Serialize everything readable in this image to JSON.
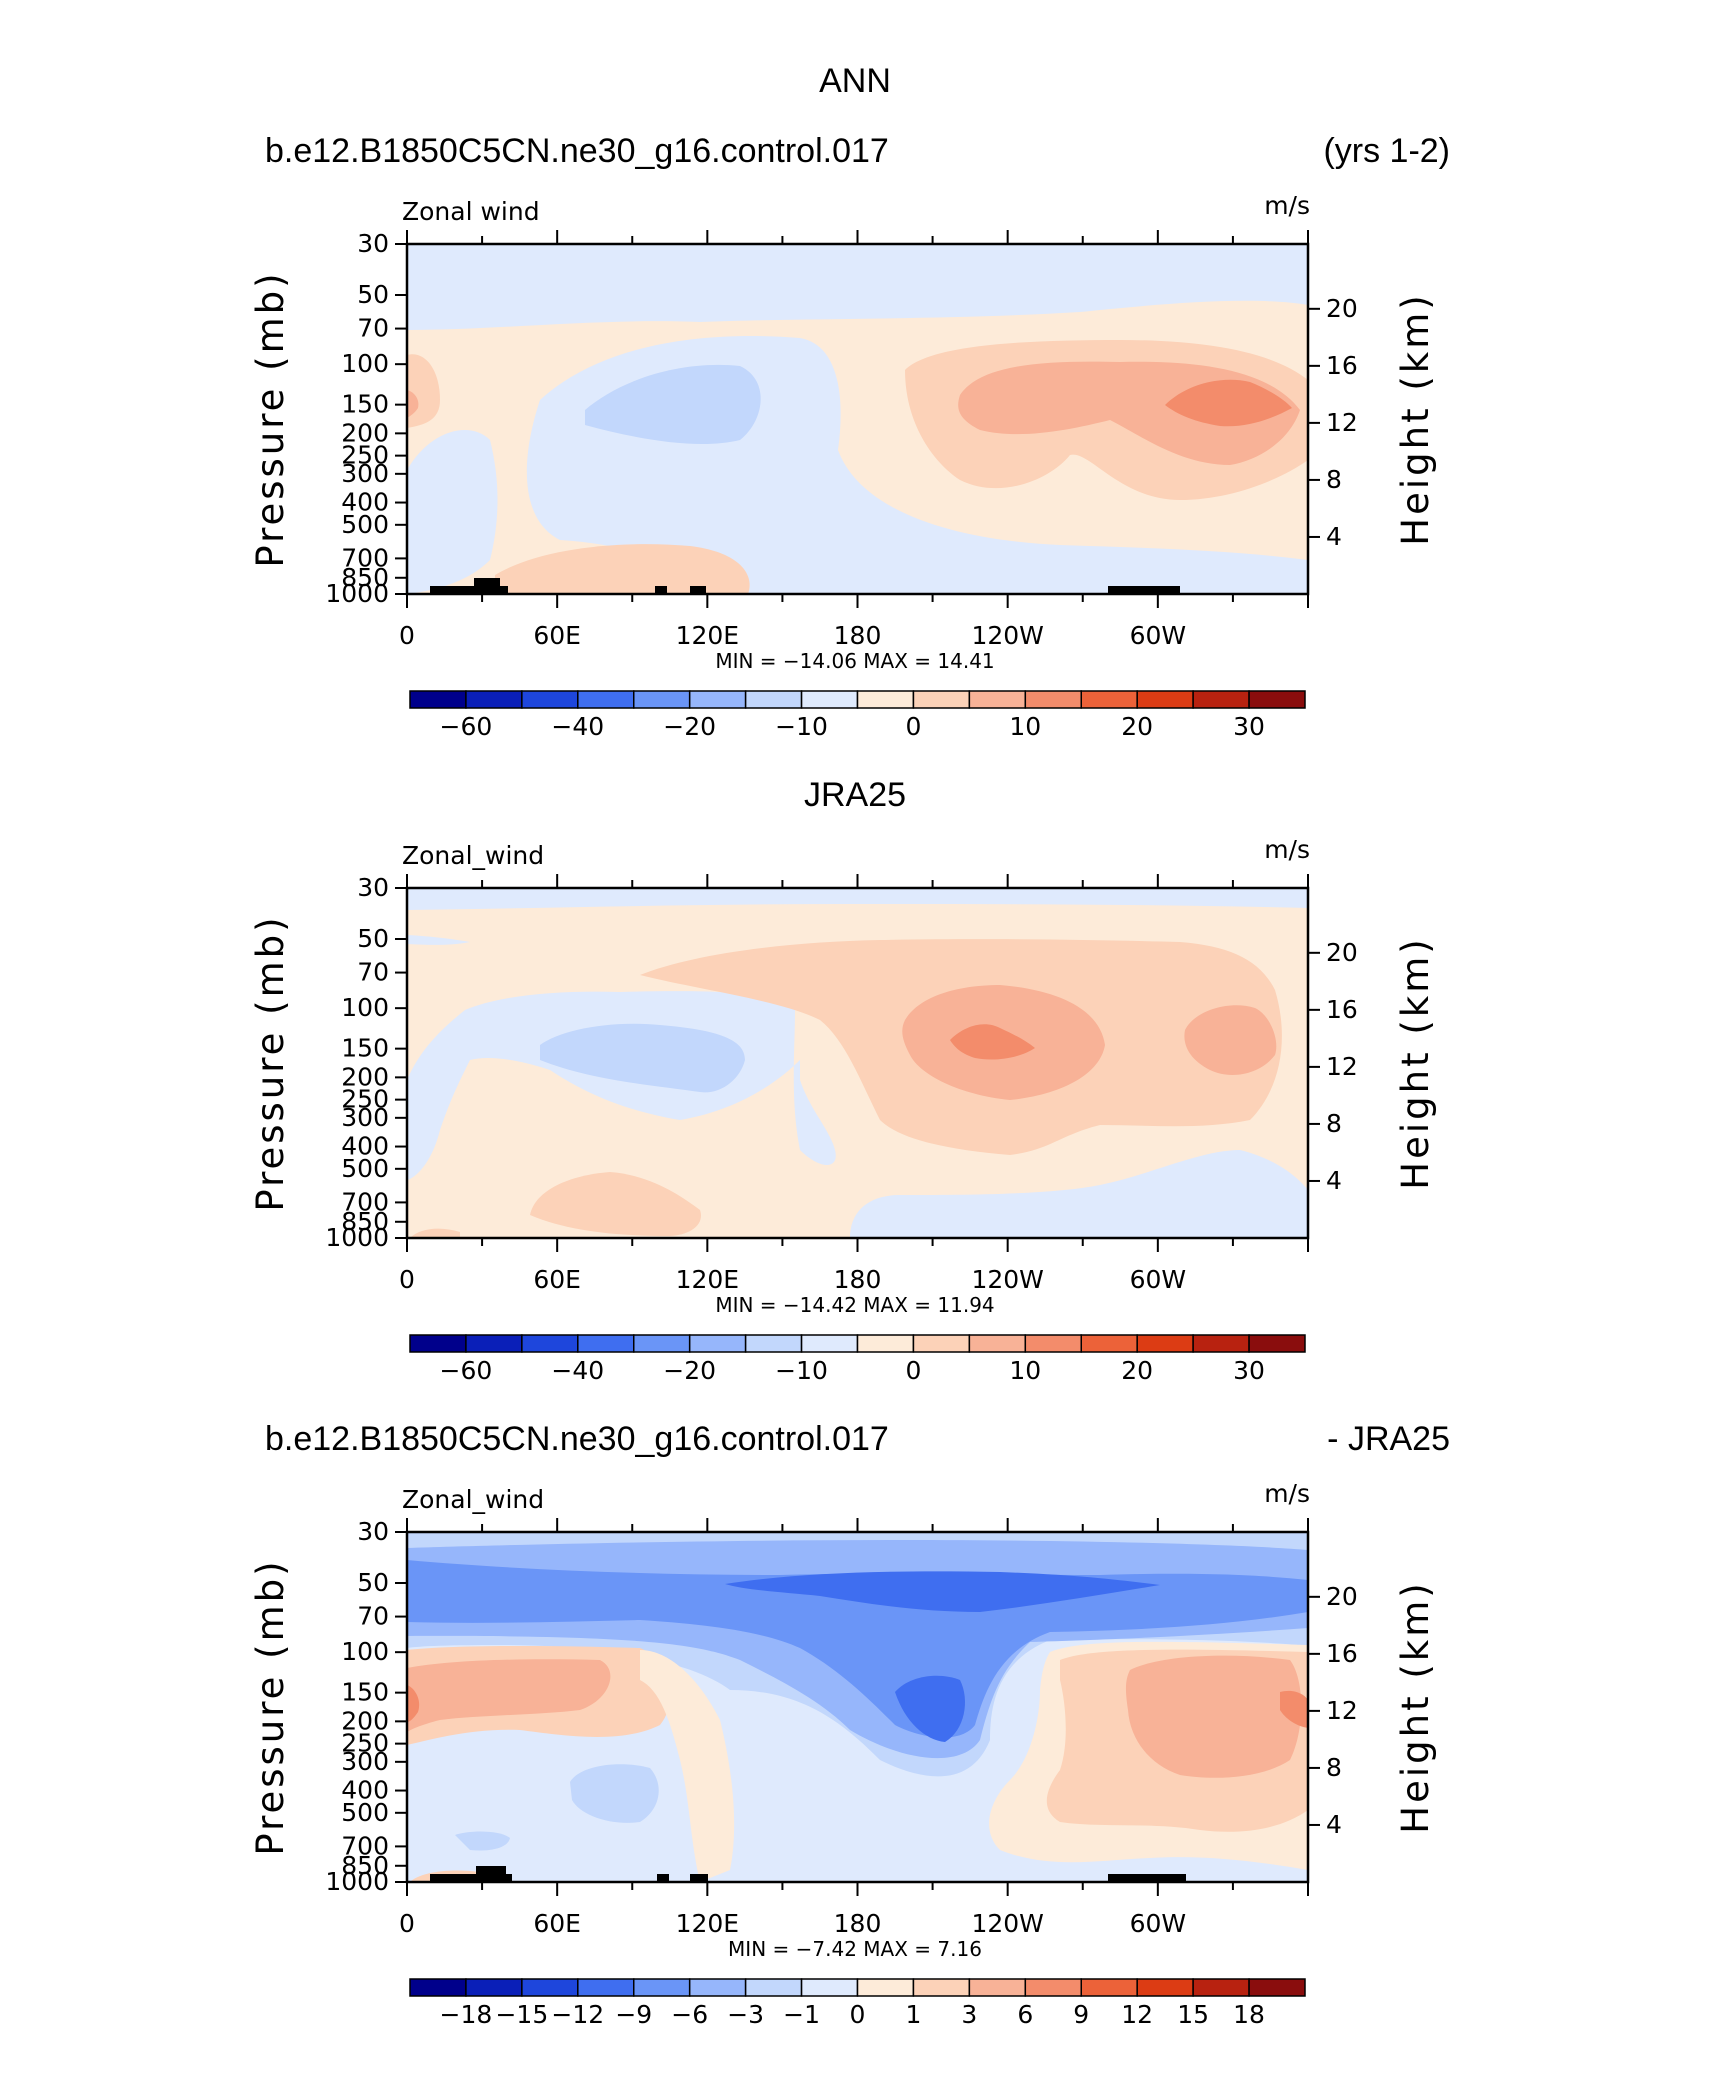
{
  "page_title": "ANN",
  "colors": {
    "scale1": [
      "#00008b",
      "#0a1fb8",
      "#1e46dc",
      "#3f6ef0",
      "#6a95f7",
      "#96b6fb",
      "#c2d7fc",
      "#dfeafd",
      "#fdebd9",
      "#fcd2b8",
      "#f8b297",
      "#f38c6b",
      "#ec6239",
      "#dc3c14",
      "#b82210",
      "#8a0d0d"
    ],
    "scale2": [
      "#00008b",
      "#0a1fb8",
      "#1e46dc",
      "#3f6ef0",
      "#6a95f7",
      "#96b6fb",
      "#c2d7fc",
      "#dfeafd",
      "#fdebd9",
      "#fcd2b8",
      "#f8b297",
      "#f38c6b",
      "#ec6239",
      "#dc3c14",
      "#b82210",
      "#8a0d0d"
    ]
  },
  "chart_data": [
    {
      "type": "heatmap",
      "title_left": "b.e12.B1850C5CN.ne30_g16.control.017",
      "title_right": "(yrs 1-2)",
      "variable": "Zonal wind",
      "units": "m/s",
      "ylabel": "Pressure (mb)",
      "ylabel_right": "Height (km)",
      "y_ticks": [
        "30",
        "50",
        "70",
        "100",
        "150",
        "200",
        "250",
        "300",
        "400",
        "500",
        "700",
        "850",
        "1000"
      ],
      "y_right_ticks": [
        "20",
        "16",
        "12",
        "8",
        "4"
      ],
      "x_ticks": [
        "0",
        "60E",
        "120E",
        "180",
        "120W",
        "60W"
      ],
      "stat": "MIN = −14.06   MAX =   14.41",
      "colorbar_labels": [
        "−60",
        "−40",
        "−20",
        "−10",
        "0",
        "10",
        "20",
        "30"
      ],
      "min": -14.06,
      "max": 14.41
    },
    {
      "type": "heatmap",
      "title_center": "JRA25",
      "variable": "Zonal_wind",
      "units": "m/s",
      "ylabel": "Pressure (mb)",
      "ylabel_right": "Height (km)",
      "y_ticks": [
        "30",
        "50",
        "70",
        "100",
        "150",
        "200",
        "250",
        "300",
        "400",
        "500",
        "700",
        "850",
        "1000"
      ],
      "y_right_ticks": [
        "20",
        "16",
        "12",
        "8",
        "4"
      ],
      "x_ticks": [
        "0",
        "60E",
        "120E",
        "180",
        "120W",
        "60W"
      ],
      "stat": "MIN = −14.42   MAX =   11.94",
      "colorbar_labels": [
        "−60",
        "−40",
        "−20",
        "−10",
        "0",
        "10",
        "20",
        "30"
      ],
      "min": -14.42,
      "max": 11.94
    },
    {
      "type": "heatmap",
      "title_left": "b.e12.B1850C5CN.ne30_g16.control.017",
      "title_right": "- JRA25",
      "variable": "Zonal_wind",
      "units": "m/s",
      "ylabel": "Pressure (mb)",
      "ylabel_right": "Height (km)",
      "y_ticks": [
        "30",
        "50",
        "70",
        "100",
        "150",
        "200",
        "250",
        "300",
        "400",
        "500",
        "700",
        "850",
        "1000"
      ],
      "y_right_ticks": [
        "20",
        "16",
        "12",
        "8",
        "4"
      ],
      "x_ticks": [
        "0",
        "60E",
        "120E",
        "180",
        "120W",
        "60W"
      ],
      "stat": "MIN =   −7.42   MAX =     7.16",
      "colorbar_labels": [
        "−18",
        "−15",
        "−12",
        "−9",
        "−6",
        "−3",
        "−1",
        "0",
        "1",
        "3",
        "6",
        "9",
        "12",
        "15",
        "18"
      ],
      "min": -7.42,
      "max": 7.16
    }
  ]
}
